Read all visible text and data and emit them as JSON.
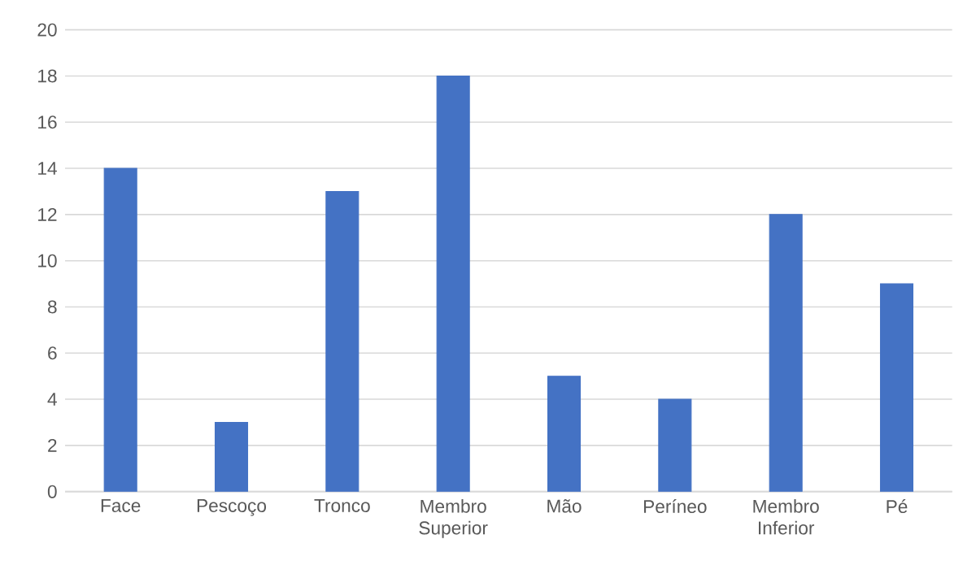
{
  "chart_data": {
    "type": "bar",
    "categories": [
      "Face",
      "Pescoço",
      "Tronco",
      "Membro Superior",
      "Mão",
      "Períneo",
      "Membro Inferior",
      "Pé"
    ],
    "values": [
      14,
      3,
      13,
      18,
      5,
      4,
      12,
      9
    ],
    "color": "#4472c4",
    "ylim": [
      0,
      20
    ],
    "yticks": [
      0,
      2,
      4,
      6,
      8,
      10,
      12,
      14,
      16,
      18,
      20
    ],
    "grid": "y"
  }
}
